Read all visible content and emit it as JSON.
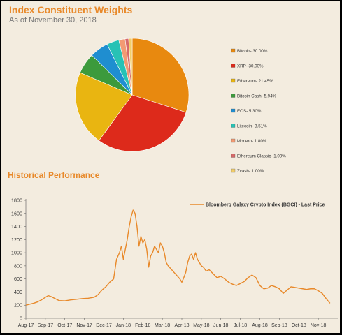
{
  "header": {
    "title": "Index Constituent Weights",
    "subtitle": "As of November 30, 2018"
  },
  "performance": {
    "title": "Historical Performance"
  },
  "chart_data": [
    {
      "type": "pie",
      "title": "Index Constituent Weights",
      "slices": [
        {
          "label": "Bitcoin- 30.00%",
          "value": 30.0,
          "color": "#e8890f"
        },
        {
          "label": "XRP- 30.00%",
          "value": 30.0,
          "color": "#dd2a1b"
        },
        {
          "label": "Ethereum- 21.45%",
          "value": 21.45,
          "color": "#e9b511"
        },
        {
          "label": "Bitcoin Cash- 5.94%",
          "value": 5.94,
          "color": "#3c9a3c"
        },
        {
          "label": "EOS- 5.30%",
          "value": 5.3,
          "color": "#1f8ed0"
        },
        {
          "label": "Litecoin- 3.51%",
          "value": 3.51,
          "color": "#28c2b5"
        },
        {
          "label": "Monero- 1.80%",
          "value": 1.8,
          "color": "#f29a73"
        },
        {
          "label": "Ethereum Classic- 1.00%",
          "value": 1.0,
          "color": "#d66a6a"
        },
        {
          "label": "Zcash- 1.00%",
          "value": 1.0,
          "color": "#f2cd6a"
        }
      ],
      "legend_position": "right"
    },
    {
      "type": "line",
      "title": "Historical Performance",
      "ylim": [
        0,
        1800
      ],
      "yticks": [
        0,
        200,
        400,
        600,
        800,
        1000,
        1200,
        1400,
        1600,
        1800
      ],
      "xticks": [
        "Aug-17",
        "Sep-17",
        "Oct-17",
        "Nov-17",
        "Dec-17",
        "Jan-18",
        "Feb-18",
        "Mar-18",
        "Apr-18",
        "May-18",
        "Jun-18",
        "Jul-18",
        "Aug-18",
        "Sep-18",
        "Oct-18",
        "Nov-18"
      ],
      "grid": false,
      "legend_position": "top-right",
      "series": [
        {
          "name": "Bloomberg Galaxy Crypto Index (BGCI) - Last Price",
          "color": "#e8892a",
          "x": [
            0,
            0.2,
            0.4,
            0.6,
            0.8,
            1.0,
            1.15,
            1.3,
            1.5,
            1.7,
            2.0,
            2.3,
            2.6,
            2.9,
            3.2,
            3.5,
            3.7,
            3.9,
            4.1,
            4.3,
            4.5,
            4.65,
            4.8,
            4.9,
            5.0,
            5.1,
            5.2,
            5.3,
            5.4,
            5.5,
            5.6,
            5.7,
            5.8,
            5.9,
            6.0,
            6.1,
            6.2,
            6.3,
            6.4,
            6.5,
            6.6,
            6.7,
            6.8,
            6.9,
            7.0,
            7.1,
            7.2,
            7.3,
            7.45,
            7.6,
            7.75,
            7.9,
            8.0,
            8.1,
            8.2,
            8.3,
            8.4,
            8.5,
            8.6,
            8.7,
            8.8,
            8.9,
            9.0,
            9.1,
            9.25,
            9.4,
            9.6,
            9.8,
            10.0,
            10.2,
            10.4,
            10.6,
            10.8,
            11.0,
            11.2,
            11.4,
            11.6,
            11.8,
            12.0,
            12.2,
            12.4,
            12.6,
            12.8,
            13.0,
            13.2,
            13.4,
            13.6,
            13.8,
            14.0,
            14.2,
            14.4,
            14.6,
            14.8,
            15.0,
            15.2,
            15.4,
            15.6
          ],
          "y": [
            200,
            215,
            230,
            250,
            280,
            320,
            345,
            330,
            300,
            270,
            265,
            280,
            290,
            300,
            305,
            320,
            360,
            430,
            480,
            550,
            600,
            900,
            1000,
            1100,
            900,
            1050,
            1200,
            1400,
            1550,
            1650,
            1600,
            1400,
            1100,
            1250,
            1150,
            1200,
            1050,
            780,
            950,
            1000,
            1100,
            1050,
            1000,
            1150,
            1100,
            1000,
            850,
            800,
            750,
            700,
            650,
            600,
            550,
            620,
            700,
            850,
            950,
            980,
            900,
            1000,
            900,
            850,
            800,
            780,
            720,
            740,
            680,
            620,
            640,
            600,
            550,
            520,
            500,
            530,
            560,
            620,
            660,
            620,
            500,
            450,
            460,
            500,
            480,
            450,
            380,
            430,
            480,
            470,
            460,
            450,
            440,
            450,
            450,
            420,
            380,
            300,
            230
          ]
        }
      ]
    }
  ]
}
